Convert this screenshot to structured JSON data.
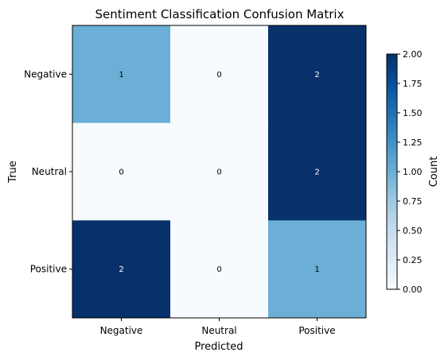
{
  "chart_data": {
    "type": "heatmap",
    "title": "Sentiment Classification Confusion Matrix",
    "xlabel": "Predicted",
    "ylabel": "True",
    "x_categories": [
      "Negative",
      "Neutral",
      "Positive"
    ],
    "y_categories": [
      "Negative",
      "Neutral",
      "Positive"
    ],
    "values": [
      [
        1,
        0,
        2
      ],
      [
        0,
        0,
        2
      ],
      [
        2,
        0,
        1
      ]
    ],
    "colormap": "Blues",
    "vmin": 0,
    "vmax": 2,
    "colorbar": {
      "label": "Count",
      "ticks": [
        "0.00",
        "0.25",
        "0.50",
        "0.75",
        "1.00",
        "1.25",
        "1.50",
        "1.75",
        "2.00"
      ]
    }
  }
}
